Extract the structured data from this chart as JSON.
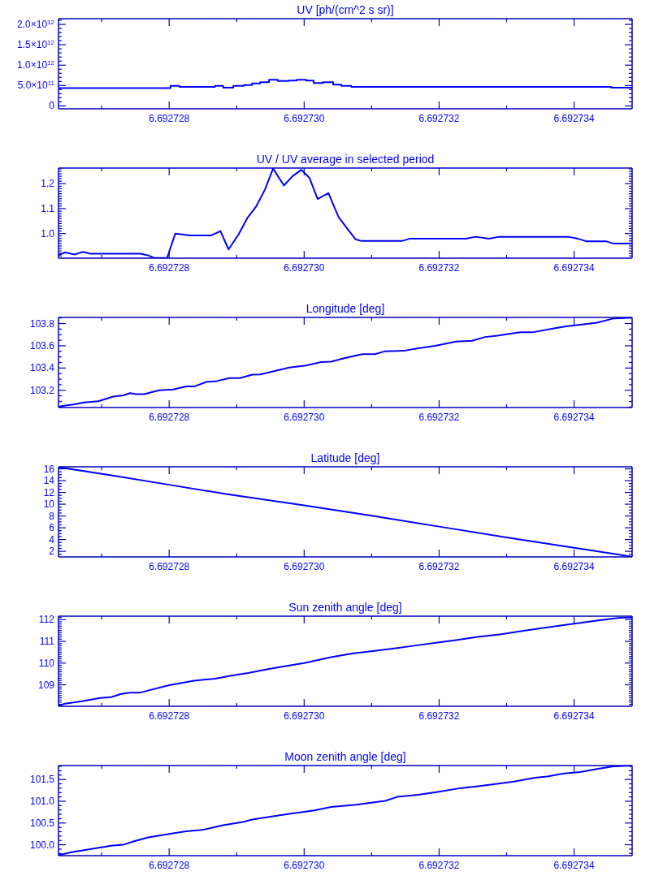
{
  "chart_data": [
    {
      "type": "step",
      "title": "UV [ph/(cm^2 s sr)]",
      "color": "#0000ff",
      "x": [
        6.69272636,
        6.69272802,
        6.69272815,
        6.69272868,
        6.6927288,
        6.69272895,
        6.69272911,
        6.69272923,
        6.69272935,
        6.69272948,
        6.69272961,
        6.69272977,
        6.69272989,
        6.69273003,
        6.69273014,
        6.69273028,
        6.69273043,
        6.69273055,
        6.6927307,
        6.69273455,
        6.69273486
      ],
      "values": [
        440000000000,
        490000000000,
        470000000000,
        490000000000,
        450000000000,
        490000000000,
        510000000000,
        550000000000,
        580000000000,
        640000000000,
        610000000000,
        620000000000,
        640000000000,
        620000000000,
        560000000000,
        580000000000,
        520000000000,
        490000000000,
        470000000000,
        450000000000,
        450000000000
      ],
      "xlim": [
        6.69272636,
        6.69273486
      ],
      "xticks": [
        {
          "value": 6.692727,
          "label": null
        },
        6.692728,
        {
          "value": 6.692729,
          "label": null
        },
        {
          "value": 6.69273,
          "label": "6.692730"
        },
        {
          "value": 6.692731,
          "label": null
        },
        6.692732,
        {
          "value": 6.692733,
          "label": null
        },
        6.692734
      ],
      "ylim": [
        -70000000000,
        2140000000000
      ],
      "yticks": [
        0,
        {
          "value": 100000000000,
          "label": null
        },
        {
          "value": 200000000000,
          "label": null
        },
        {
          "value": 300000000000,
          "label": null
        },
        {
          "value": 400000000000,
          "label": null
        },
        {
          "value": 500000000000,
          "label": "5.0×10$^{11}$"
        },
        {
          "value": 600000000000,
          "label": null
        },
        {
          "value": 700000000000,
          "label": null
        },
        {
          "value": 800000000000,
          "label": null
        },
        {
          "value": 900000000000,
          "label": null
        },
        {
          "value": 1000000000000,
          "label": "1.0×10$^{12}$"
        },
        {
          "value": 1100000000000,
          "label": null
        },
        {
          "value": 1200000000000,
          "label": null
        },
        {
          "value": 1300000000000,
          "label": null
        },
        {
          "value": 1400000000000,
          "label": null
        },
        {
          "value": 1500000000000,
          "label": "1.5×10$^{12}$"
        },
        {
          "value": 1600000000000,
          "label": null
        },
        {
          "value": 1700000000000,
          "label": null
        },
        {
          "value": 1800000000000,
          "label": null
        },
        {
          "value": 1900000000000,
          "label": null
        },
        {
          "value": 2000000000000,
          "label": "2.0×10$^{12}$"
        },
        {
          "value": 2100000000000,
          "label": null
        }
      ]
    },
    {
      "type": "line",
      "title": "UV / UV average in selected period",
      "color": "#0000ff",
      "x": [
        6.69272636,
        6.69272646,
        6.6927266,
        6.69272673,
        6.69272683,
        6.69272757,
        6.69272769,
        6.69272778,
        6.69272797,
        6.69272809,
        6.69272831,
        6.69272862,
        6.69272876,
        6.69272888,
        6.69272903,
        6.69272916,
        6.69272929,
        6.69272942,
        6.69272954,
        6.6927297,
        6.69272983,
        6.69272996,
        6.69273008,
        6.6927302,
        6.69273036,
        6.69273051,
        6.69273063,
        6.69273076,
        6.69273085,
        6.69273145,
        6.69273156,
        6.6927324,
        6.69273254,
        6.69273274,
        6.69273289,
        6.69273391,
        6.69273406,
        6.69273418,
        6.69273447,
        6.69273458,
        6.69273486
      ],
      "values": [
        0.914,
        0.924,
        0.916,
        0.926,
        0.919,
        0.919,
        0.912,
        0.902,
        0.902,
        1.0,
        0.992,
        0.992,
        1.01,
        0.936,
        0.997,
        1.063,
        1.109,
        1.177,
        1.261,
        1.193,
        1.231,
        1.256,
        1.223,
        1.139,
        1.162,
        1.066,
        1.023,
        0.977,
        0.97,
        0.97,
        0.979,
        0.979,
        0.987,
        0.979,
        0.987,
        0.987,
        0.979,
        0.969,
        0.969,
        0.96,
        0.96
      ],
      "xlim": [
        6.69272636,
        6.69273486
      ],
      "xticks": [
        {
          "value": 6.692727,
          "label": null
        },
        6.692728,
        {
          "value": 6.692729,
          "label": null
        },
        {
          "value": 6.69273,
          "label": "6.692730"
        },
        {
          "value": 6.692731,
          "label": null
        },
        6.692732,
        {
          "value": 6.692733,
          "label": null
        },
        6.692734
      ],
      "ylim": [
        0.901,
        1.263
      ],
      "yticks": [
        {
          "value": 0.91,
          "label": null
        },
        {
          "value": 0.92,
          "label": null
        },
        {
          "value": 0.93,
          "label": null
        },
        {
          "value": 0.94,
          "label": null
        },
        {
          "value": 0.95,
          "label": null
        },
        {
          "value": 0.96,
          "label": null
        },
        {
          "value": 0.97,
          "label": null
        },
        {
          "value": 0.98,
          "label": null
        },
        {
          "value": 0.99,
          "label": null
        },
        {
          "value": 1,
          "label": "1.0"
        },
        {
          "value": 1.01,
          "label": null
        },
        {
          "value": 1.02,
          "label": null
        },
        {
          "value": 1.03,
          "label": null
        },
        {
          "value": 1.04,
          "label": null
        },
        {
          "value": 1.05,
          "label": null
        },
        {
          "value": 1.06,
          "label": null
        },
        {
          "value": 1.07,
          "label": null
        },
        {
          "value": 1.08,
          "label": null
        },
        {
          "value": 1.09,
          "label": null
        },
        1.1,
        {
          "value": 1.11,
          "label": null
        },
        {
          "value": 1.12,
          "label": null
        },
        {
          "value": 1.13,
          "label": null
        },
        {
          "value": 1.14,
          "label": null
        },
        {
          "value": 1.15,
          "label": null
        },
        {
          "value": 1.16,
          "label": null
        },
        {
          "value": 1.17,
          "label": null
        },
        {
          "value": 1.18,
          "label": null
        },
        {
          "value": 1.19,
          "label": null
        },
        1.2,
        {
          "value": 1.21,
          "label": null
        },
        {
          "value": 1.22,
          "label": null
        },
        {
          "value": 1.23,
          "label": null
        },
        {
          "value": 1.24,
          "label": null
        },
        {
          "value": 1.25,
          "label": null
        },
        {
          "value": 1.26,
          "label": null
        }
      ]
    },
    {
      "type": "line",
      "title": "Longitude [deg]",
      "color": "#0000ff",
      "x": [
        6.69272636,
        6.69272646,
        6.69272658,
        6.69272674,
        6.69272695,
        6.69272717,
        6.69272732,
        6.69272742,
        6.69272751,
        6.69272763,
        6.69272785,
        6.69272806,
        6.69272825,
        6.69272837,
        6.69272855,
        6.69272871,
        6.69272889,
        6.69272905,
        6.69272923,
        6.69272935,
        6.69272978,
        6.69273003,
        6.69273025,
        6.6927304,
        6.69273058,
        6.69273086,
        6.69273105,
        6.6927312,
        6.69273148,
        6.69273169,
        6.69273194,
        6.69273225,
        6.69273249,
        6.69273268,
        6.69273286,
        6.6927332,
        6.69273338,
        6.69273372,
        6.69273388,
        6.69273409,
        6.69273434,
        6.69273458,
        6.69273486
      ],
      "values": [
        103.053,
        103.064,
        103.072,
        103.091,
        103.102,
        103.143,
        103.155,
        103.174,
        103.166,
        103.166,
        103.2,
        103.208,
        103.234,
        103.234,
        103.275,
        103.283,
        103.309,
        103.309,
        103.34,
        103.343,
        103.404,
        103.423,
        103.453,
        103.457,
        103.487,
        103.525,
        103.525,
        103.551,
        103.555,
        103.578,
        103.6,
        103.638,
        103.645,
        103.679,
        103.691,
        103.721,
        103.721,
        103.758,
        103.774,
        103.789,
        103.808,
        103.845,
        103.853
      ],
      "xlim": [
        6.69272636,
        6.69273486
      ],
      "xticks": [
        {
          "value": 6.692727,
          "label": null
        },
        6.692728,
        {
          "value": 6.692729,
          "label": null
        },
        {
          "value": 6.69273,
          "label": "6.692730"
        },
        {
          "value": 6.692731,
          "label": null
        },
        6.692732,
        {
          "value": 6.692733,
          "label": null
        },
        6.692734
      ],
      "ylim": [
        103.045,
        103.855
      ],
      "yticks": [
        {
          "value": 103.05,
          "label": null
        },
        {
          "value": 103.1,
          "label": null
        },
        {
          "value": 103.15,
          "label": null
        },
        103.2,
        {
          "value": 103.25,
          "label": null
        },
        {
          "value": 103.3,
          "label": null
        },
        {
          "value": 103.35,
          "label": null
        },
        103.4,
        {
          "value": 103.45,
          "label": null
        },
        {
          "value": 103.5,
          "label": null
        },
        {
          "value": 103.55,
          "label": null
        },
        103.6,
        {
          "value": 103.65,
          "label": null
        },
        {
          "value": 103.7,
          "label": null
        },
        {
          "value": 103.75,
          "label": null
        },
        103.8,
        {
          "value": 103.85,
          "label": null
        }
      ]
    },
    {
      "type": "line",
      "title": "Latitude [deg]",
      "color": "#0000ff",
      "x": [
        6.69272636,
        6.6927272,
        6.692728,
        6.69272886,
        6.69273,
        6.69273102,
        6.692732,
        6.69273298,
        6.692734,
        6.69273486
      ],
      "values": [
        16.3,
        14.8,
        13.3,
        11.7,
        9.8,
        8.0,
        6.2,
        4.4,
        2.6,
        1.1
      ],
      "xlim": [
        6.69272636,
        6.69273486
      ],
      "xticks": [
        {
          "value": 6.692727,
          "label": null
        },
        6.692728,
        {
          "value": 6.692729,
          "label": null
        },
        {
          "value": 6.69273,
          "label": "6.692730"
        },
        {
          "value": 6.692731,
          "label": null
        },
        6.692732,
        {
          "value": 6.692733,
          "label": null
        },
        6.692734
      ],
      "ylim": [
        1.05,
        16.35
      ],
      "yticks": [
        {
          "value": 1.5,
          "label": null
        },
        2,
        {
          "value": 2.5,
          "label": null
        },
        {
          "value": 3,
          "label": null
        },
        {
          "value": 3.5,
          "label": null
        },
        4,
        {
          "value": 4.5,
          "label": null
        },
        {
          "value": 5,
          "label": null
        },
        {
          "value": 5.5,
          "label": null
        },
        6,
        {
          "value": 6.5,
          "label": null
        },
        {
          "value": 7,
          "label": null
        },
        {
          "value": 7.5,
          "label": null
        },
        8,
        {
          "value": 8.5,
          "label": null
        },
        {
          "value": 9,
          "label": null
        },
        {
          "value": 9.5,
          "label": null
        },
        10,
        {
          "value": 10.5,
          "label": null
        },
        {
          "value": 11,
          "label": null
        },
        {
          "value": 11.5,
          "label": null
        },
        12,
        {
          "value": 12.5,
          "label": null
        },
        {
          "value": 13,
          "label": null
        },
        {
          "value": 13.5,
          "label": null
        },
        14,
        {
          "value": 14.5,
          "label": null
        },
        {
          "value": 15,
          "label": null
        },
        {
          "value": 15.5,
          "label": null
        },
        16
      ]
    },
    {
      "type": "line",
      "title": "Sun zenith angle [deg]",
      "color": "#0000ff",
      "x": [
        6.69272636,
        6.69272646,
        6.69272671,
        6.69272698,
        6.69272714,
        6.69272729,
        6.69272742,
        6.69272757,
        6.692728,
        6.69272837,
        6.69272868,
        6.69272892,
        6.69272917,
        6.69272948,
        6.69272978,
        6.69273,
        6.6927304,
        6.69273071,
        6.69273102,
        6.69273138,
        6.69273163,
        6.692732,
        6.69273225,
        6.69273255,
        6.69273292,
        6.69273323,
        6.69273348,
        6.69273378,
        6.69273409,
        6.6927344,
        6.69273465,
        6.69273486
      ],
      "values": [
        108.05,
        108.13,
        108.24,
        108.39,
        108.43,
        108.58,
        108.64,
        108.64,
        108.98,
        109.19,
        109.28,
        109.42,
        109.54,
        109.73,
        109.89,
        110.0,
        110.27,
        110.44,
        110.55,
        110.69,
        110.8,
        110.95,
        111.06,
        111.2,
        111.33,
        111.48,
        111.59,
        111.72,
        111.85,
        111.98,
        112.08,
        112.1
      ],
      "xlim": [
        6.69272636,
        6.69273486
      ],
      "xticks": [
        {
          "value": 6.692727,
          "label": null
        },
        6.692728,
        {
          "value": 6.692729,
          "label": null
        },
        {
          "value": 6.69273,
          "label": "6.692730"
        },
        {
          "value": 6.692731,
          "label": null
        },
        6.692732,
        {
          "value": 6.692733,
          "label": null
        },
        6.692734
      ],
      "ylim": [
        108.01,
        112.16
      ],
      "yticks": [
        {
          "value": 108.1,
          "label": null
        },
        {
          "value": 108.2,
          "label": null
        },
        {
          "value": 108.3,
          "label": null
        },
        {
          "value": 108.4,
          "label": null
        },
        {
          "value": 108.5,
          "label": null
        },
        {
          "value": 108.6,
          "label": null
        },
        {
          "value": 108.7,
          "label": null
        },
        {
          "value": 108.8,
          "label": null
        },
        {
          "value": 108.9,
          "label": null
        },
        109,
        {
          "value": 109.1,
          "label": null
        },
        {
          "value": 109.2,
          "label": null
        },
        {
          "value": 109.3,
          "label": null
        },
        {
          "value": 109.4,
          "label": null
        },
        {
          "value": 109.5,
          "label": null
        },
        {
          "value": 109.6,
          "label": null
        },
        {
          "value": 109.7,
          "label": null
        },
        {
          "value": 109.8,
          "label": null
        },
        {
          "value": 109.9,
          "label": null
        },
        110,
        {
          "value": 110.1,
          "label": null
        },
        {
          "value": 110.2,
          "label": null
        },
        {
          "value": 110.3,
          "label": null
        },
        {
          "value": 110.4,
          "label": null
        },
        {
          "value": 110.5,
          "label": null
        },
        {
          "value": 110.6,
          "label": null
        },
        {
          "value": 110.7,
          "label": null
        },
        {
          "value": 110.8,
          "label": null
        },
        {
          "value": 110.9,
          "label": null
        },
        111,
        {
          "value": 111.1,
          "label": null
        },
        {
          "value": 111.2,
          "label": null
        },
        {
          "value": 111.3,
          "label": null
        },
        {
          "value": 111.4,
          "label": null
        },
        {
          "value": 111.5,
          "label": null
        },
        {
          "value": 111.6,
          "label": null
        },
        {
          "value": 111.7,
          "label": null
        },
        {
          "value": 111.8,
          "label": null
        },
        {
          "value": 111.9,
          "label": null
        },
        112,
        {
          "value": 112.1,
          "label": null
        }
      ]
    },
    {
      "type": "line",
      "title": "Moon zenith angle [deg]",
      "color": "#0000ff",
      "x": [
        6.69272636,
        6.69272655,
        6.69272683,
        6.69272714,
        6.69272732,
        6.69272748,
        6.69272769,
        6.692728,
        6.69272825,
        6.69272849,
        6.6927288,
        6.69272911,
        6.69272923,
        6.69272948,
        6.69272978,
        6.69273015,
        6.6927304,
        6.69273077,
        6.6927312,
        6.69273138,
        6.69273169,
        6.692732,
        6.69273231,
        6.69273255,
        6.69273286,
        6.69273311,
        6.69273342,
        6.6927336,
        6.69273385,
        6.69273409,
        6.69273434,
        6.69273458,
        6.69273486
      ],
      "values": [
        99.76,
        99.83,
        99.9,
        99.98,
        100.0,
        100.08,
        100.17,
        100.25,
        100.31,
        100.34,
        100.45,
        100.53,
        100.58,
        100.64,
        100.71,
        100.79,
        100.87,
        100.92,
        101.01,
        101.1,
        101.15,
        101.22,
        101.3,
        101.34,
        101.4,
        101.45,
        101.54,
        101.57,
        101.64,
        101.67,
        101.74,
        101.8,
        101.82
      ],
      "xlim": [
        6.69272636,
        6.69273486
      ],
      "xticks": [
        {
          "value": 6.692727,
          "label": null
        },
        6.692728,
        {
          "value": 6.692729,
          "label": null
        },
        {
          "value": 6.69273,
          "label": "6.692730"
        },
        {
          "value": 6.692731,
          "label": null
        },
        6.692732,
        {
          "value": 6.692733,
          "label": null
        },
        6.692734
      ],
      "ylim": [
        99.75,
        101.82
      ],
      "yticks": [
        {
          "value": 99.8,
          "label": null
        },
        {
          "value": 99.9,
          "label": null
        },
        {
          "value": 100,
          "label": "100.0"
        },
        {
          "value": 100.1,
          "label": null
        },
        {
          "value": 100.2,
          "label": null
        },
        {
          "value": 100.3,
          "label": null
        },
        {
          "value": 100.4,
          "label": null
        },
        100.5,
        {
          "value": 100.6,
          "label": null
        },
        {
          "value": 100.7,
          "label": null
        },
        {
          "value": 100.8,
          "label": null
        },
        {
          "value": 100.9,
          "label": null
        },
        {
          "value": 101,
          "label": "101.0"
        },
        {
          "value": 101.1,
          "label": null
        },
        {
          "value": 101.2,
          "label": null
        },
        {
          "value": 101.3,
          "label": null
        },
        {
          "value": 101.4,
          "label": null
        },
        101.5,
        {
          "value": 101.6,
          "label": null
        },
        {
          "value": 101.7,
          "label": null
        },
        {
          "value": 101.8,
          "label": null
        }
      ]
    }
  ]
}
